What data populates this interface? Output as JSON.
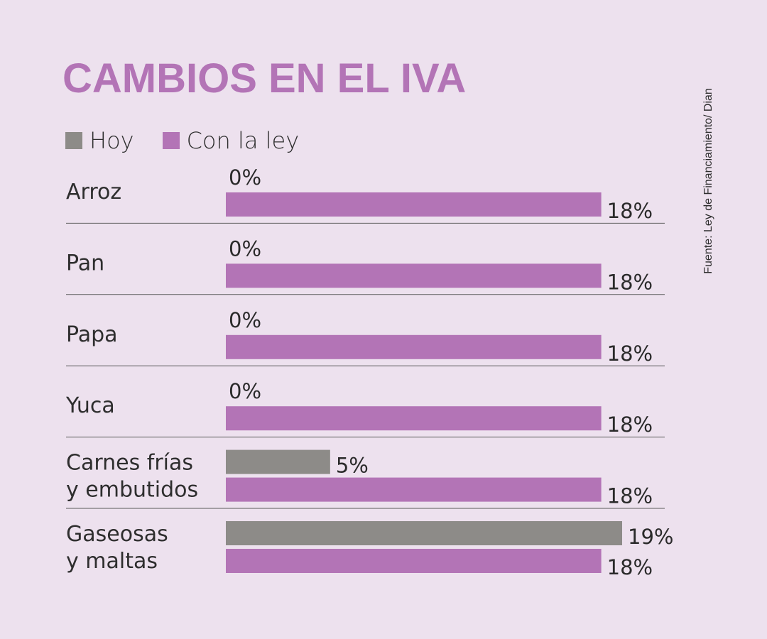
{
  "title": "CAMBIOS EN EL IVA",
  "source": "Fuente: Ley de Financiamiento/ Dian",
  "legend": [
    {
      "label": "Hoy",
      "color": "#8d8b88"
    },
    {
      "label": "Con la ley",
      "color": "#b374b6"
    }
  ],
  "chart_data": {
    "type": "bar",
    "orientation": "horizontal",
    "title": "CAMBIOS EN EL IVA",
    "categories": [
      [
        "Arroz"
      ],
      [
        "Pan"
      ],
      [
        "Papa"
      ],
      [
        "Yuca"
      ],
      [
        "Carnes frías",
        "y embutidos"
      ],
      [
        "Gaseosas",
        "y maltas"
      ]
    ],
    "series": [
      {
        "name": "Hoy",
        "color": "#8d8b88",
        "values": [
          0,
          0,
          0,
          0,
          5,
          19
        ],
        "labels": [
          "0%",
          "0%",
          "0%",
          "0%",
          "5%",
          "19%"
        ]
      },
      {
        "name": "Con la ley",
        "color": "#b374b6",
        "values": [
          18,
          18,
          18,
          18,
          18,
          18
        ],
        "labels": [
          "18%",
          "18%",
          "18%",
          "18%",
          "18%",
          "18%"
        ]
      }
    ],
    "unit": "%",
    "xlim": [
      0,
      19
    ],
    "grid": false,
    "legend_position": "top-left"
  }
}
